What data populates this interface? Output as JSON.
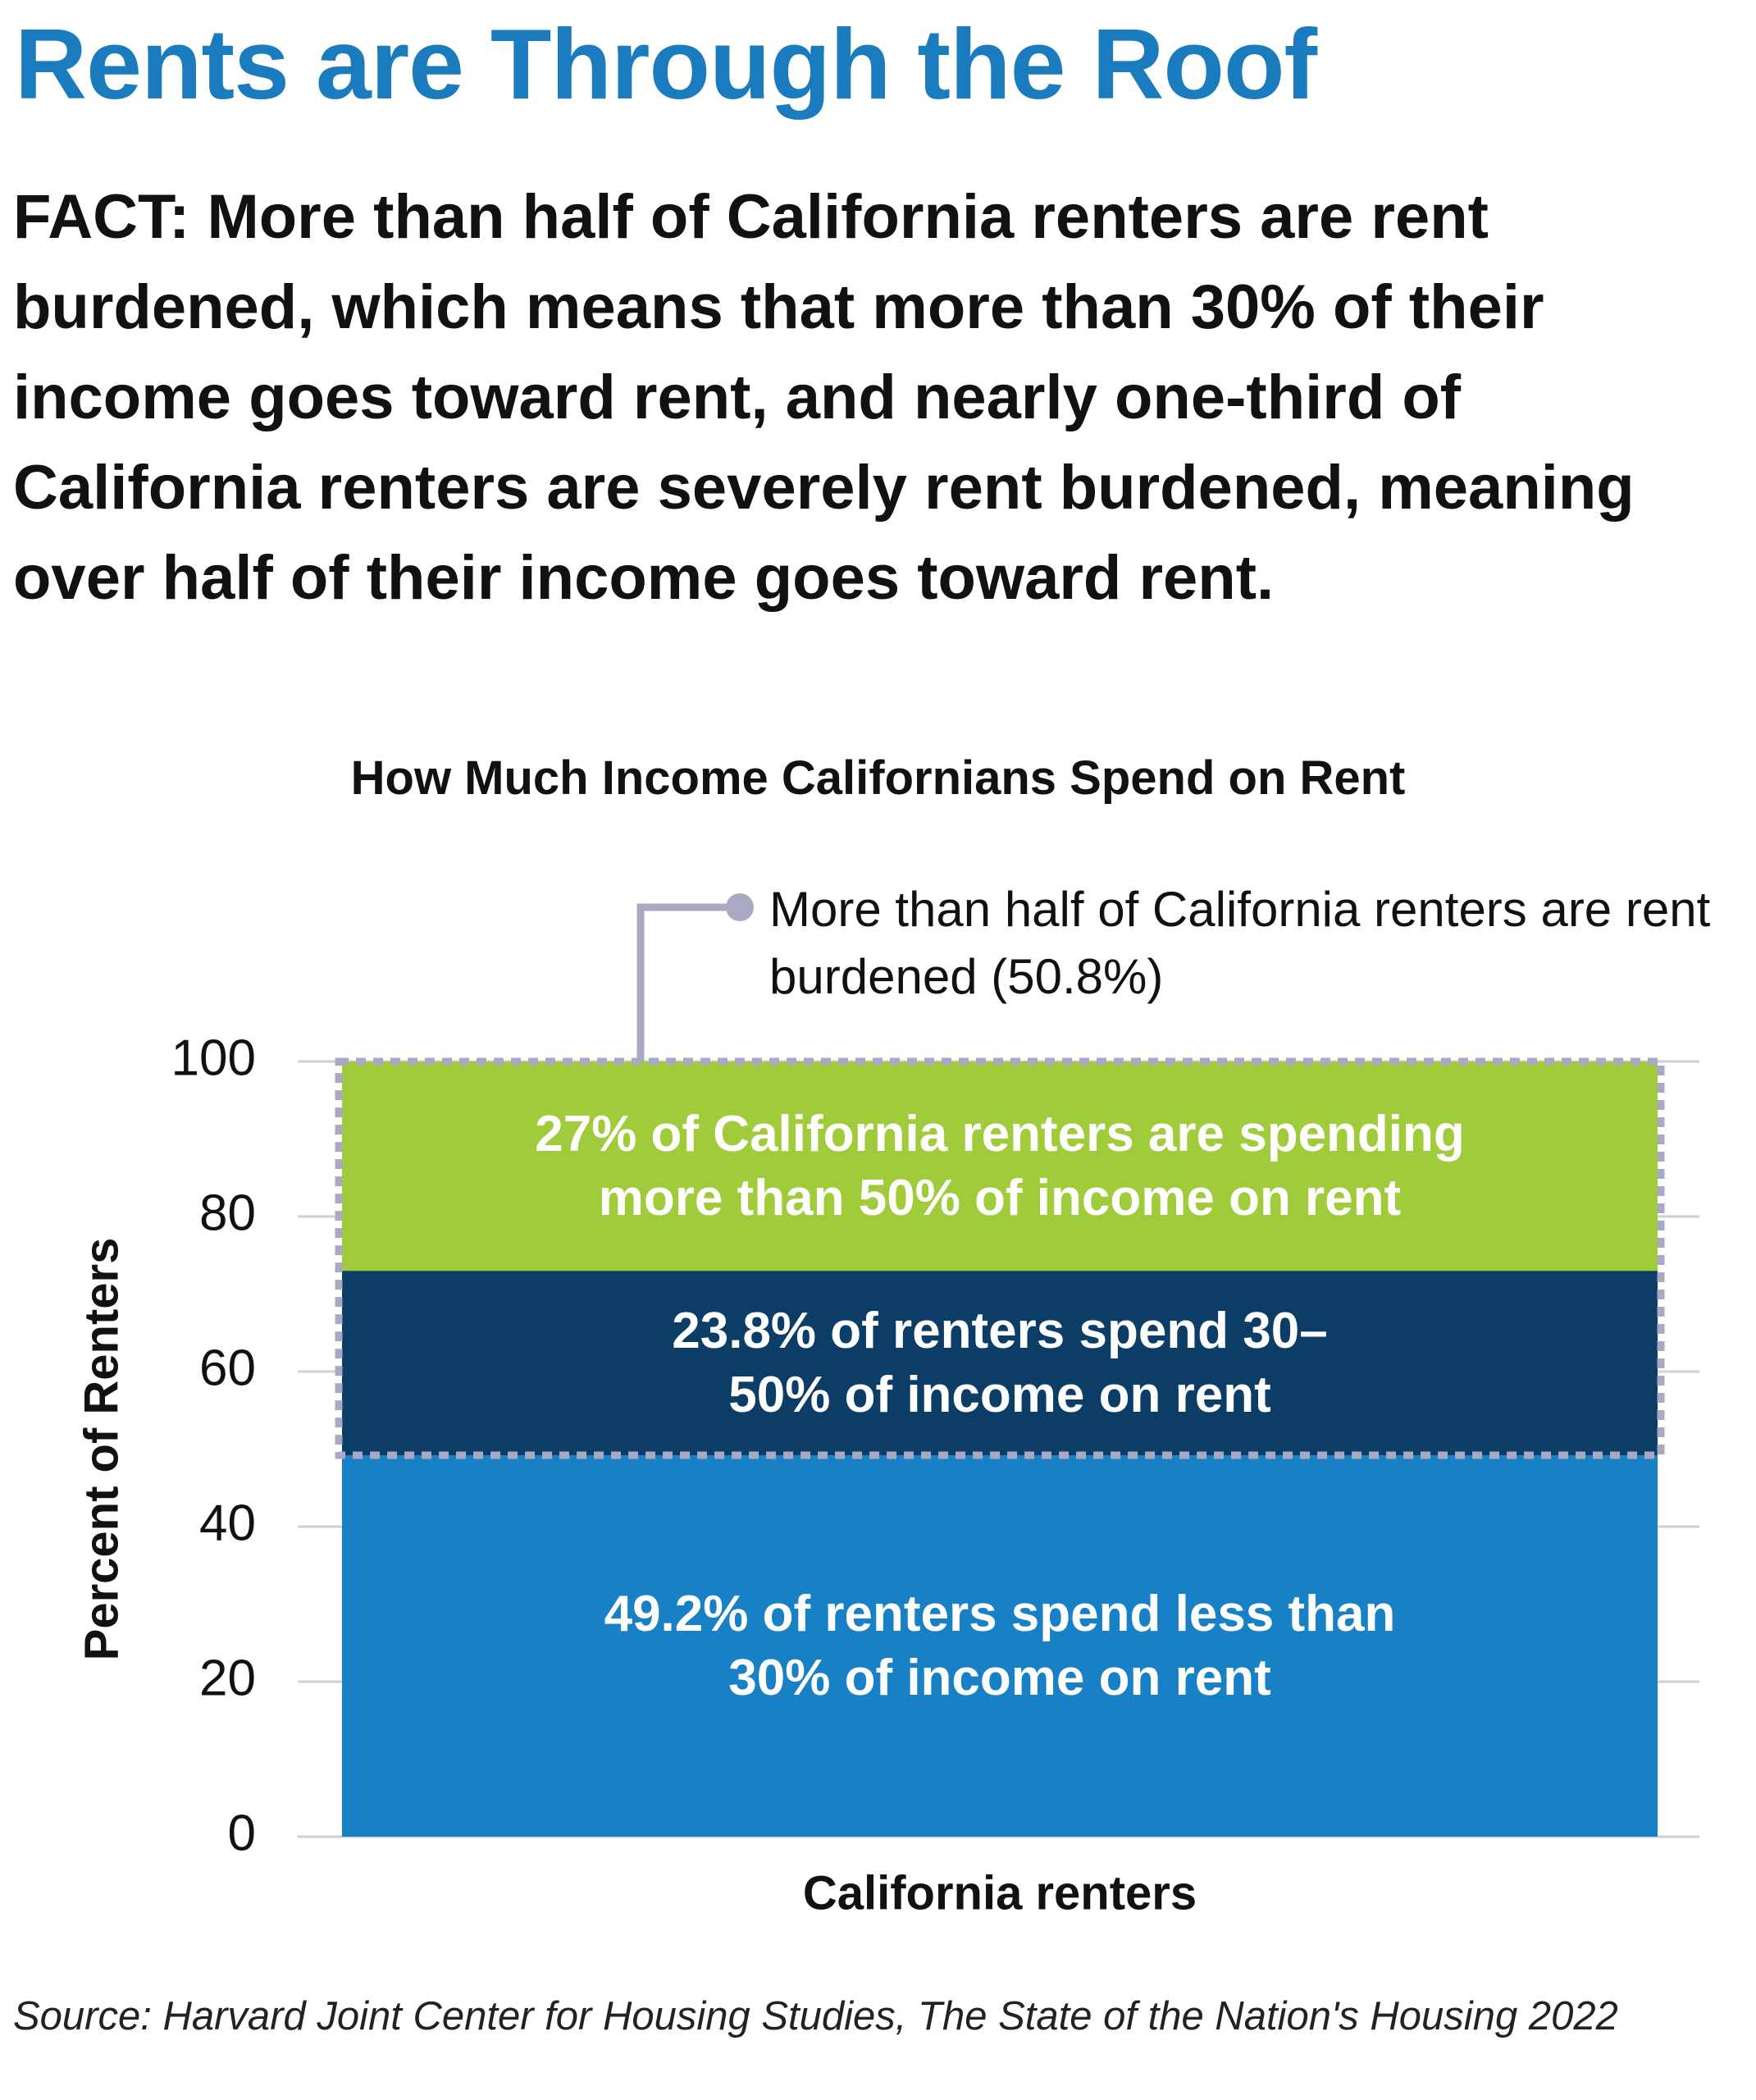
{
  "header": {
    "title": "Rents are Through the Roof"
  },
  "fact": {
    "label": "FACT:",
    "text": "More than half of California renters are rent burdened, which means that more than 30% of their income goes toward rent, and nearly one-third of California renters are severely rent burdened, meaning over half of their income goes toward rent."
  },
  "chart_data": {
    "type": "bar",
    "stacked": true,
    "title": "How Much Income Californians Spend on Rent",
    "y_label": "Percent of Renters",
    "categories": [
      "California renters"
    ],
    "series": [
      {
        "color": "#1880c4",
        "values": [
          49.2
        ],
        "value_labels": [
          "49.2% of renters spend less than 30% of income on rent"
        ]
      },
      {
        "color": "#0b3d66",
        "values": [
          23.8
        ],
        "value_labels": [
          "23.8% of renters spend 30–50% of income on rent"
        ]
      },
      {
        "color": "#a0cb3a",
        "values": [
          27
        ],
        "value_labels": [
          "27% of California renters are spending more than 50% of income on rent"
        ]
      }
    ],
    "annotation": {
      "text": "More than half of California renters are rent burdened (50.8%)",
      "value": 50.8
    },
    "ylim": [
      0,
      100
    ],
    "yticks": [
      0,
      20,
      40,
      60,
      80,
      100
    ],
    "grid": true
  },
  "source": "Source: Harvard Joint Center for Housing Studies, The State of the Nation's Housing 2022"
}
